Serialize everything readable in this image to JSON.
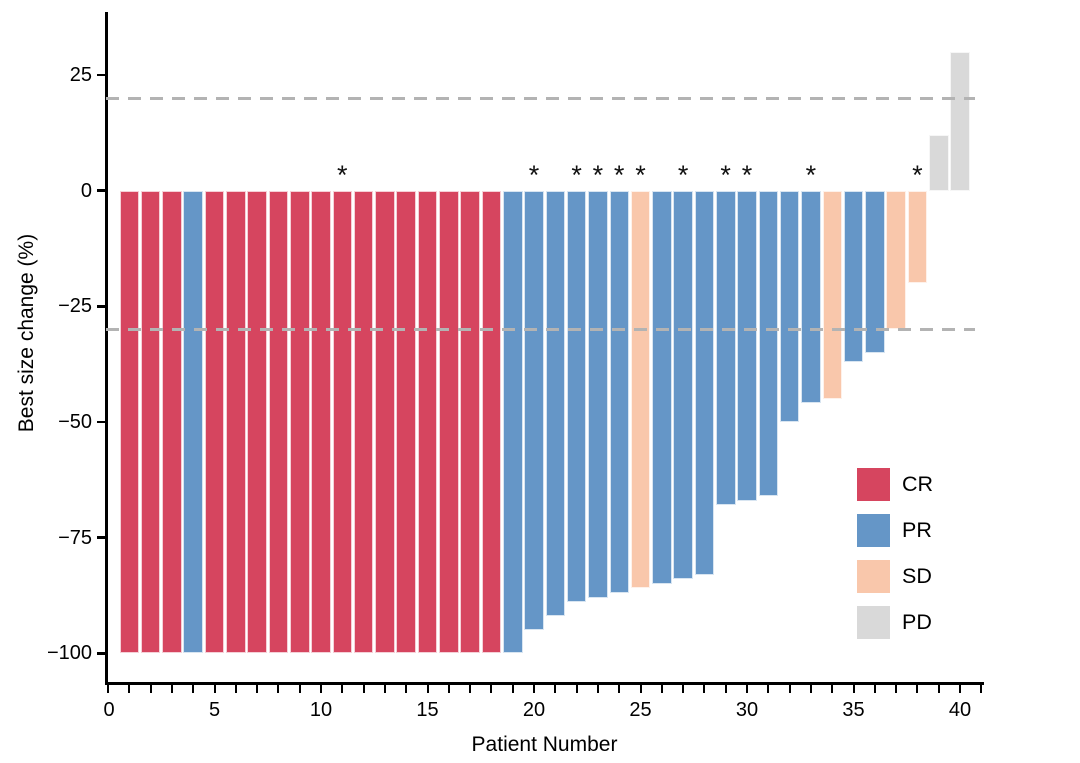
{
  "chart_data": {
    "type": "bar",
    "variant": "waterfall",
    "title": "",
    "xlabel": "Patient Number",
    "ylabel": "Best size change (%)",
    "x_axis": {
      "tick_values": [
        0,
        5,
        10,
        15,
        20,
        25,
        30,
        35,
        40
      ],
      "tick_labels": [
        "0",
        "5",
        "10",
        "15",
        "20",
        "25",
        "30",
        "35",
        "40"
      ],
      "minor_tick_every": 1,
      "minor_tick_range": [
        0,
        41
      ],
      "range": [
        0,
        41.5
      ]
    },
    "y_axis": {
      "tick_values": [
        25,
        0,
        -25,
        -50,
        -75,
        -100
      ],
      "tick_labels": [
        "25",
        "0",
        "−25",
        "−50",
        "−75",
        "−100"
      ],
      "range": [
        -107,
        38
      ]
    },
    "reference_lines": [
      {
        "y": 20,
        "style": "dashed",
        "color": "#b3b3b3"
      },
      {
        "y": -30,
        "style": "dashed",
        "color": "#b3b3b3"
      }
    ],
    "legend": {
      "position": "inside-right",
      "items": [
        {
          "label": "CR",
          "color": "#d6455f"
        },
        {
          "label": "PR",
          "color": "#6596c7"
        },
        {
          "label": "SD",
          "color": "#f9c7ab"
        },
        {
          "label": "PD",
          "color": "#d9d9d9"
        }
      ]
    },
    "significance_marker": "*",
    "marked_patients": [
      11,
      20,
      22,
      23,
      24,
      25,
      27,
      29,
      30,
      33,
      38
    ],
    "patients": [
      {
        "patient": 1,
        "value": -100,
        "response": "CR",
        "marked": false
      },
      {
        "patient": 2,
        "value": -100,
        "response": "CR",
        "marked": false
      },
      {
        "patient": 3,
        "value": -100,
        "response": "CR",
        "marked": false
      },
      {
        "patient": 4,
        "value": -100,
        "response": "PR",
        "marked": false
      },
      {
        "patient": 5,
        "value": -100,
        "response": "CR",
        "marked": false
      },
      {
        "patient": 6,
        "value": -100,
        "response": "CR",
        "marked": false
      },
      {
        "patient": 7,
        "value": -100,
        "response": "CR",
        "marked": false
      },
      {
        "patient": 8,
        "value": -100,
        "response": "CR",
        "marked": false
      },
      {
        "patient": 9,
        "value": -100,
        "response": "CR",
        "marked": false
      },
      {
        "patient": 10,
        "value": -100,
        "response": "CR",
        "marked": false
      },
      {
        "patient": 11,
        "value": -100,
        "response": "CR",
        "marked": true
      },
      {
        "patient": 12,
        "value": -100,
        "response": "CR",
        "marked": false
      },
      {
        "patient": 13,
        "value": -100,
        "response": "CR",
        "marked": false
      },
      {
        "patient": 14,
        "value": -100,
        "response": "CR",
        "marked": false
      },
      {
        "patient": 15,
        "value": -100,
        "response": "CR",
        "marked": false
      },
      {
        "patient": 16,
        "value": -100,
        "response": "CR",
        "marked": false
      },
      {
        "patient": 17,
        "value": -100,
        "response": "CR",
        "marked": false
      },
      {
        "patient": 18,
        "value": -100,
        "response": "CR",
        "marked": false
      },
      {
        "patient": 19,
        "value": -100,
        "response": "PR",
        "marked": false
      },
      {
        "patient": 20,
        "value": -95,
        "response": "PR",
        "marked": true
      },
      {
        "patient": 21,
        "value": -92,
        "response": "PR",
        "marked": false
      },
      {
        "patient": 22,
        "value": -89,
        "response": "PR",
        "marked": true
      },
      {
        "patient": 23,
        "value": -88,
        "response": "PR",
        "marked": true
      },
      {
        "patient": 24,
        "value": -87,
        "response": "PR",
        "marked": true
      },
      {
        "patient": 25,
        "value": -86,
        "response": "SD",
        "marked": true
      },
      {
        "patient": 26,
        "value": -85,
        "response": "PR",
        "marked": false
      },
      {
        "patient": 27,
        "value": -84,
        "response": "PR",
        "marked": true
      },
      {
        "patient": 28,
        "value": -83,
        "response": "PR",
        "marked": false
      },
      {
        "patient": 29,
        "value": -68,
        "response": "PR",
        "marked": true
      },
      {
        "patient": 30,
        "value": -67,
        "response": "PR",
        "marked": true
      },
      {
        "patient": 31,
        "value": -66,
        "response": "PR",
        "marked": false
      },
      {
        "patient": 32,
        "value": -50,
        "response": "PR",
        "marked": false
      },
      {
        "patient": 33,
        "value": -46,
        "response": "PR",
        "marked": true
      },
      {
        "patient": 34,
        "value": -45,
        "response": "SD",
        "marked": false
      },
      {
        "patient": 35,
        "value": -37,
        "response": "PR",
        "marked": false
      },
      {
        "patient": 36,
        "value": -35,
        "response": "PR",
        "marked": false
      },
      {
        "patient": 37,
        "value": -30,
        "response": "SD",
        "marked": false
      },
      {
        "patient": 38,
        "value": -20,
        "response": "SD",
        "marked": true
      },
      {
        "patient": 39,
        "value": 12,
        "response": "PD",
        "marked": false
      },
      {
        "patient": 40,
        "value": 30,
        "response": "PD",
        "marked": false
      }
    ]
  }
}
